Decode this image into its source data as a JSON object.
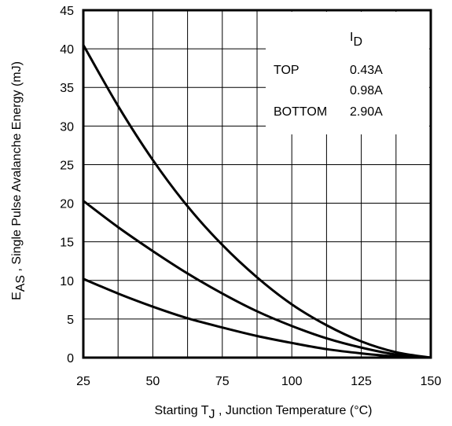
{
  "chart_data": {
    "type": "line",
    "title": "",
    "xlabel": "Starting T",
    "xlabel_sub": "J",
    "xlabel_rest": " , Junction Temperature (°C)",
    "ylabel": "E",
    "ylabel_sub": "AS",
    "ylabel_rest": " , Single Pulse Avalanche Energy (mJ)",
    "xlim": [
      25,
      150
    ],
    "ylim": [
      0,
      45
    ],
    "xticks": [
      25,
      50,
      75,
      100,
      125,
      150
    ],
    "yticks": [
      0,
      5,
      10,
      15,
      20,
      25,
      30,
      35,
      40,
      45
    ],
    "grid": true,
    "legend": {
      "position": "top-right",
      "header": "I",
      "header_sub": "D",
      "rows": [
        {
          "label": "TOP",
          "value": "0.43A"
        },
        {
          "label": "",
          "value": "0.98A"
        },
        {
          "label": "BOTTOM",
          "value": "2.90A"
        }
      ]
    },
    "x": [
      25,
      37.5,
      50,
      62.5,
      75,
      87.5,
      100,
      112.5,
      125,
      137.5,
      150
    ],
    "series": [
      {
        "values": [
          40.5,
          32.6,
          25.6,
          19.6,
          14.6,
          10.4,
          6.9,
          4.2,
          2.1,
          0.7,
          0
        ]
      },
      {
        "values": [
          20.3,
          16.9,
          13.8,
          10.9,
          8.3,
          6.0,
          4.1,
          2.5,
          1.3,
          0.4,
          0
        ]
      },
      {
        "values": [
          10.2,
          8.3,
          6.6,
          5.1,
          3.9,
          2.8,
          1.9,
          1.1,
          0.55,
          0.15,
          0
        ]
      }
    ]
  }
}
